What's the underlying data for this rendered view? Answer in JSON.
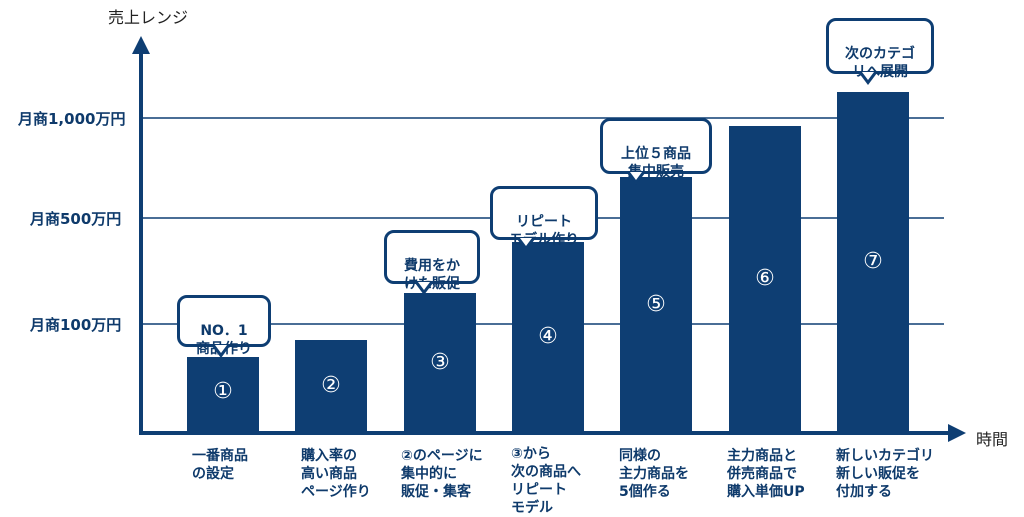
{
  "axes": {
    "y_title": "売上レンジ",
    "x_title": "時間",
    "y_levels": [
      {
        "label": "月商1,000万円"
      },
      {
        "label": "月商500万円"
      },
      {
        "label": "月商100万円"
      }
    ]
  },
  "colors": {
    "primary": "#0e3e73",
    "text": "#0e3a6b",
    "gridline": "#0e3e73"
  },
  "steps": [
    {
      "num": "①",
      "level": 0.22,
      "callout": "NO．1\n商品作り",
      "xlabel": "一番商品\nの設定"
    },
    {
      "num": "②",
      "level": 0.27,
      "callout": "",
      "xlabel": "購入率の\n高い商品\nページ作り"
    },
    {
      "num": "③",
      "level": 0.41,
      "callout": "費用をか\nけた販促",
      "xlabel": "②のページに\n集中的に\n販促・集客"
    },
    {
      "num": "④",
      "level": 0.56,
      "callout": "リピート\nモデル作り",
      "xlabel": "③から\n次の商品へ\nリピート\nモデル"
    },
    {
      "num": "⑤",
      "level": 0.75,
      "callout": "上位５商品\n集中販売",
      "xlabel": "同様の\n主力商品を\n5個作る"
    },
    {
      "num": "⑥",
      "level": 0.9,
      "callout": "",
      "xlabel": "主力商品と\n併売商品で\n購入単価UP"
    },
    {
      "num": "⑦",
      "level": 1.0,
      "callout": "次のカテゴ\nリへ展開",
      "xlabel": "新しいカテゴリ\n新しい販促を\n付加する"
    }
  ]
}
